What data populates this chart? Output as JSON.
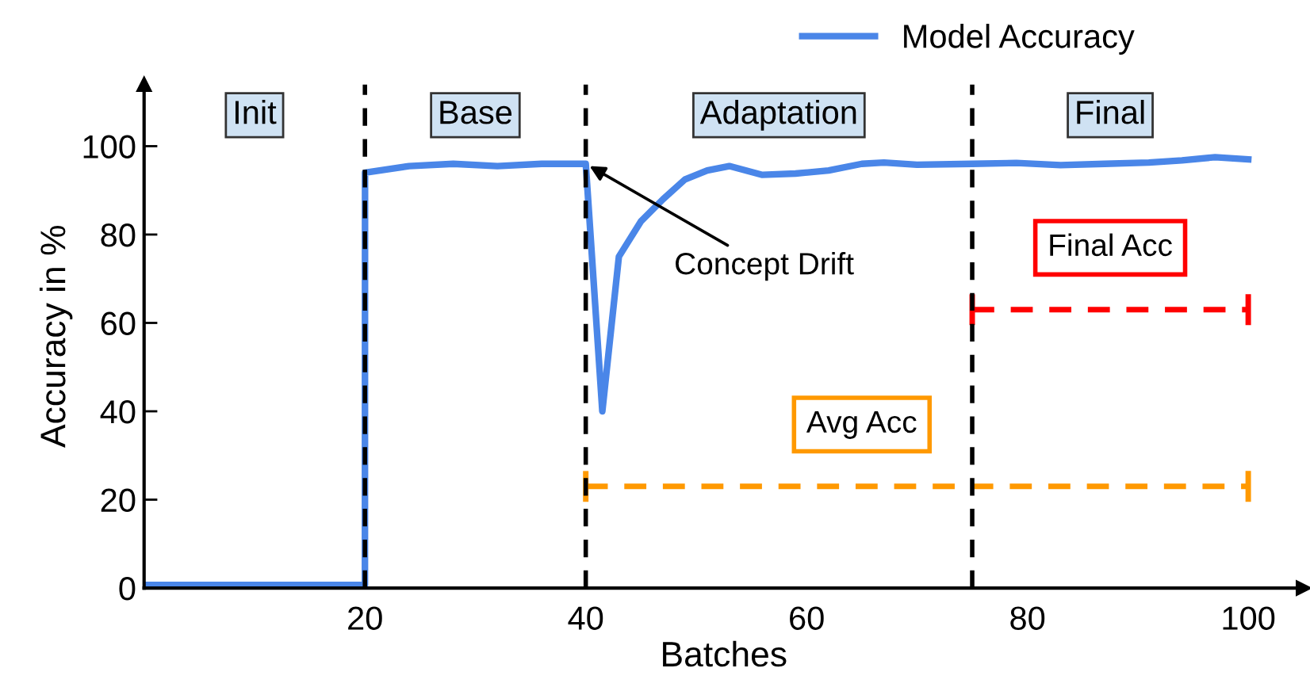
{
  "chart_data": {
    "type": "line",
    "xlabel": "Batches",
    "ylabel": "Accuracy in %",
    "xlim": [
      0,
      105
    ],
    "ylim": [
      0,
      114
    ],
    "xticks": [
      20,
      40,
      60,
      80,
      100
    ],
    "yticks": [
      0,
      20,
      40,
      60,
      80,
      100
    ],
    "grid": false,
    "legend": "top right",
    "line_style": "solid",
    "marker": "none",
    "series": [
      {
        "name": "Model Accuracy",
        "color": "#4a86e8",
        "x": [
          0,
          4,
          8,
          12,
          16,
          20,
          20.01,
          24,
          28,
          32,
          36,
          40,
          41.5,
          43,
          45,
          47,
          49,
          51,
          53,
          56,
          59,
          62,
          65,
          67,
          70,
          75,
          79,
          83,
          87,
          91,
          94,
          97,
          100
        ],
        "values": [
          0.7,
          0.7,
          0.7,
          0.7,
          0.7,
          0.7,
          94,
          95.5,
          96,
          95.5,
          96,
          96,
          40,
          75,
          83,
          88,
          92.5,
          94.5,
          95.5,
          93.5,
          93.8,
          94.5,
          96,
          96.3,
          95.8,
          96,
          96.2,
          95.7,
          96,
          96.3,
          96.8,
          97.5,
          97
        ]
      },
      {
        "color": "#ff0000",
        "x": [
          75,
          100
        ],
        "values": [
          63,
          63
        ],
        "line_style": "dashed"
      },
      {
        "color": "#ff9900",
        "x": [
          40,
          100
        ],
        "values": [
          23,
          23
        ],
        "line_style": "dashed"
      }
    ],
    "ref_lines": [
      {
        "axis": "x",
        "value": 20,
        "color": "#000000",
        "line_style": "dashed"
      },
      {
        "axis": "x",
        "value": 40,
        "color": "#000000",
        "line_style": "dashed"
      },
      {
        "axis": "x",
        "value": 75,
        "color": "#000000",
        "line_style": "dashed"
      }
    ],
    "annotations": [
      "Init",
      "Base",
      "Adaptation",
      "Final",
      {
        "text": "Concept Drift",
        "x": 40,
        "y": 96
      },
      {
        "text": "Final Acc",
        "x": 87.5,
        "y": 63
      },
      {
        "text": "Avg Acc",
        "x": 65,
        "y": 23
      }
    ]
  }
}
